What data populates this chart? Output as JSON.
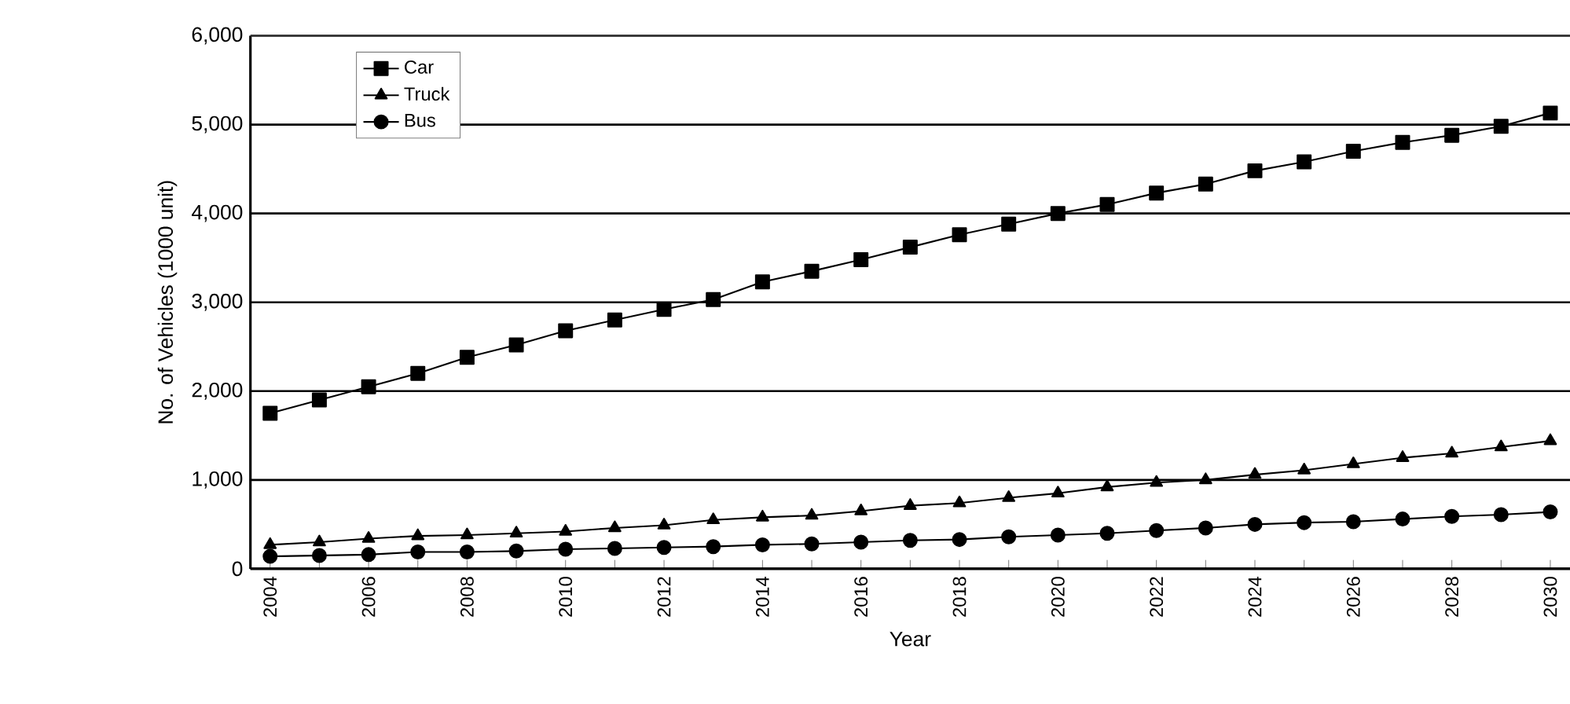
{
  "chart_data": {
    "type": "line",
    "xlabel": "Year",
    "ylabel": "No. of Vehicles (1000 unit)",
    "x": [
      2004,
      2005,
      2006,
      2007,
      2008,
      2009,
      2010,
      2011,
      2012,
      2013,
      2014,
      2015,
      2016,
      2017,
      2018,
      2019,
      2020,
      2021,
      2022,
      2023,
      2024,
      2025,
      2026,
      2027,
      2028,
      2029,
      2030
    ],
    "series": [
      {
        "name": "Car",
        "color": "#000000",
        "marker": "square",
        "values": [
          1750,
          1900,
          2050,
          2200,
          2380,
          2520,
          2680,
          2800,
          2920,
          3030,
          3230,
          3350,
          3480,
          3620,
          3760,
          3880,
          4000,
          4100,
          4230,
          4330,
          4480,
          4580,
          4700,
          4800,
          4880,
          4980,
          5130
        ]
      },
      {
        "name": "Truck",
        "color": "#000000",
        "marker": "triangle",
        "values": [
          270,
          300,
          340,
          370,
          380,
          400,
          420,
          460,
          490,
          550,
          580,
          600,
          650,
          710,
          740,
          800,
          850,
          920,
          970,
          1000,
          1060,
          1110,
          1180,
          1250,
          1300,
          1370,
          1440
        ]
      },
      {
        "name": "Bus",
        "color": "#000000",
        "marker": "circle",
        "values": [
          140,
          150,
          160,
          190,
          190,
          200,
          220,
          230,
          240,
          250,
          270,
          280,
          300,
          320,
          330,
          360,
          380,
          400,
          430,
          460,
          500,
          520,
          530,
          560,
          590,
          610,
          640
        ]
      }
    ],
    "xlim": [
      2003.6,
      2030.4
    ],
    "xticks": [
      2004,
      {
        "value": 2005,
        "label": null
      },
      2006,
      {
        "value": 2007,
        "label": null
      },
      2008,
      {
        "value": 2009,
        "label": null
      },
      2010,
      {
        "value": 2011,
        "label": null
      },
      2012,
      {
        "value": 2013,
        "label": null
      },
      2014,
      {
        "value": 2015,
        "label": null
      },
      2016,
      {
        "value": 2017,
        "label": null
      },
      2018,
      {
        "value": 2019,
        "label": null
      },
      2020,
      {
        "value": 2021,
        "label": null
      },
      2022,
      {
        "value": 2023,
        "label": null
      },
      2024,
      {
        "value": 2025,
        "label": null
      },
      2026,
      {
        "value": 2027,
        "label": null
      },
      2028,
      {
        "value": 2029,
        "label": null
      },
      2030
    ],
    "ylim": [
      0,
      6000
    ],
    "yticks": [
      {
        "value": 0,
        "label": "0"
      },
      {
        "value": 1000,
        "label": "1,000"
      },
      {
        "value": 2000,
        "label": "2,000"
      },
      {
        "value": 3000,
        "label": "3,000"
      },
      {
        "value": 4000,
        "label": "4,000"
      },
      {
        "value": 5000,
        "label": "5,000"
      },
      {
        "value": 6000,
        "label": "6,000"
      }
    ],
    "grid": "y",
    "legend": "top left",
    "line_style": "solid"
  }
}
